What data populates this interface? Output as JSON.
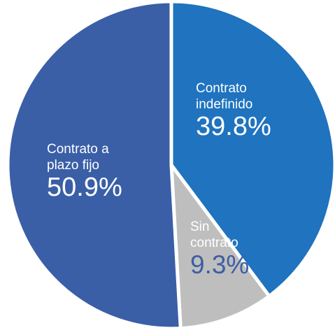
{
  "chart_data": {
    "type": "pie",
    "categories": [
      "Contrato indefinido",
      "Sin contrato",
      "Contrato a plazo fijo"
    ],
    "values": [
      39.8,
      9.3,
      50.9
    ],
    "value_labels": [
      "39.8%",
      "9.3%",
      "50.9%"
    ],
    "colors": [
      "#1f73bf",
      "#bebebe",
      "#3a5fa7"
    ],
    "start_angle": 90,
    "direction": "clockwise"
  }
}
